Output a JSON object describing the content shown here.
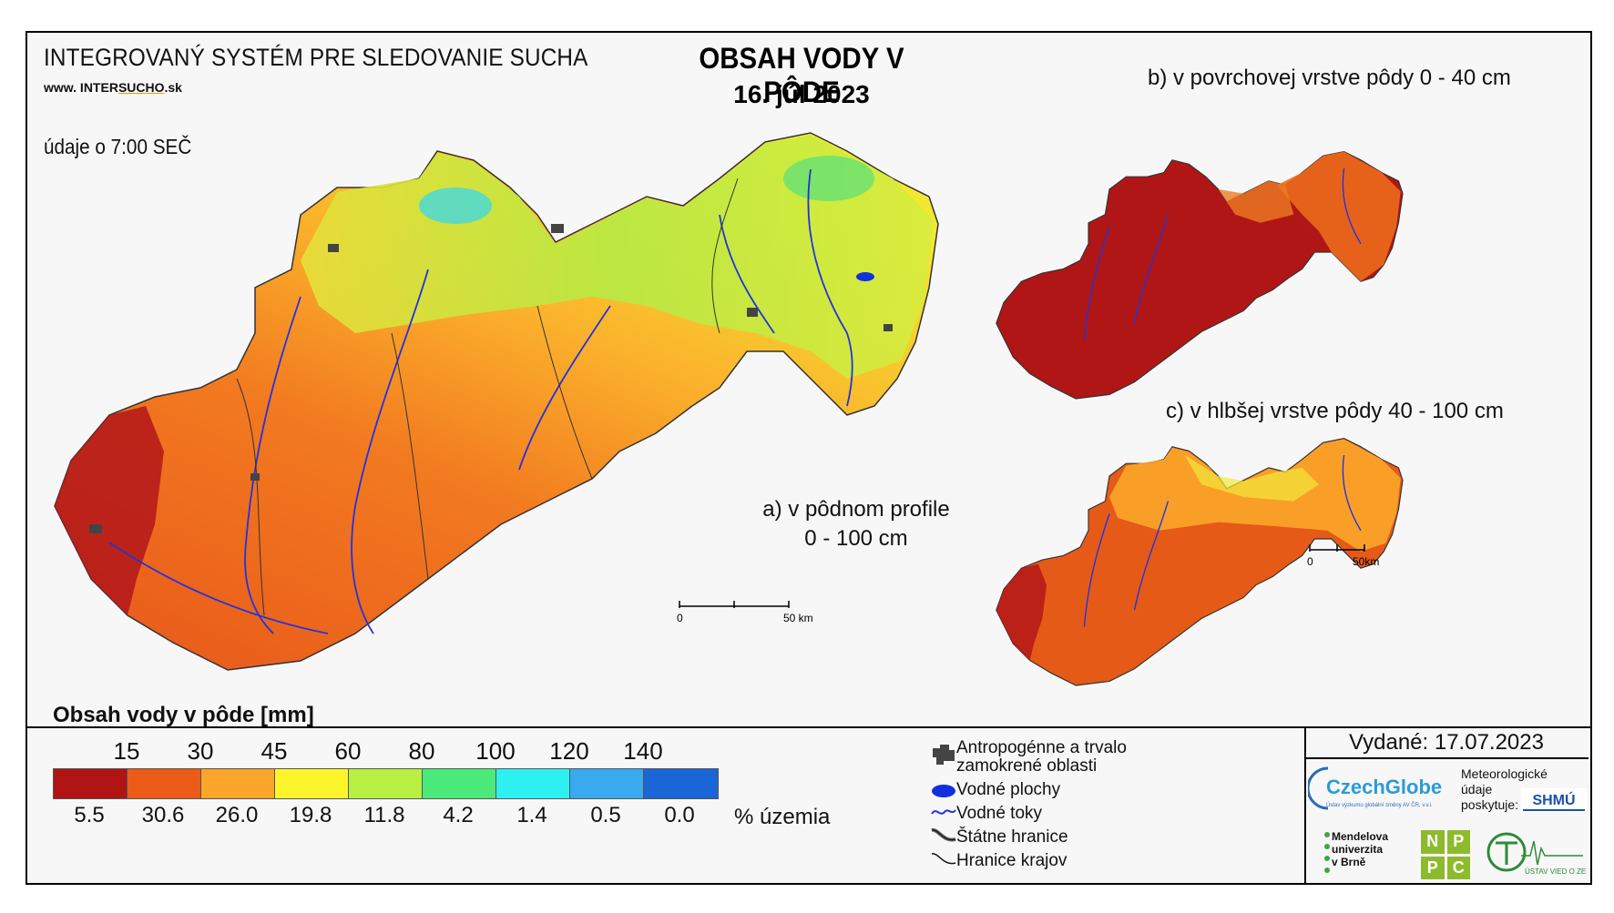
{
  "header": {
    "system_title": "INTEGROVANÝ SYSTÉM PRE SLEDOVANIE SUCHA",
    "website_prefix": "www. INTER",
    "website_highlight": "SUCHO",
    "website_suffix": ".sk",
    "time_note": "údaje o 7:00 SEČ",
    "main_title": "OBSAH VODY V PÔDE",
    "main_date": "16. júl 2023"
  },
  "maps": {
    "a_label_line1": "a) v pôdnom profile",
    "a_label_line2": "0 - 100 cm",
    "b_label": "b) v povrchovej vrstve pôdy 0 - 40 cm",
    "c_label": "c) v hlbšej vrstve pôdy 40 - 100 cm",
    "scale_main_zero": "0",
    "scale_main_end": "50 km",
    "scale_small_zero": "0",
    "scale_small_end": "50km"
  },
  "legend": {
    "title": "Obsah vody v pôde  [mm]",
    "thresholds": [
      "15",
      "30",
      "45",
      "60",
      "80",
      "100",
      "120",
      "140"
    ],
    "colors": [
      "#b01414",
      "#ec5b18",
      "#fba52a",
      "#fcf52c",
      "#b7f042",
      "#4cea7a",
      "#2ff0f0",
      "#38aaf0",
      "#1a66d6"
    ],
    "percentages": [
      "5.5",
      "30.6",
      "26.0",
      "19.8",
      "11.8",
      "4.2",
      "1.4",
      "0.5",
      "0.0"
    ],
    "percent_unit": "% územia"
  },
  "map_legend": {
    "anthropogenic_line1": "Antropogénne a trvalo",
    "anthropogenic_line2": "zamokrené oblasti",
    "water_bodies": "Vodné plochy",
    "water_streams": "Vodné toky",
    "state_borders": "Štátne hranice",
    "region_borders": "Hranice krajov",
    "icons": [
      "anthropogenic-area-icon",
      "water-body-icon",
      "water-stream-icon",
      "state-border-icon",
      "region-border-icon"
    ]
  },
  "footer": {
    "issued": "Vydané: 17.07.2023",
    "czechglobe": "CzechGlobe",
    "czechglobe_sub": "Ústav výzkumu globální změny AV ČR, v.v.i.",
    "meteo_line1": "Meteorologické",
    "meteo_line2": "údaje",
    "meteo_line3": "poskytuje:",
    "shmu": "SHMÚ",
    "mendel_line1": "Mendelova",
    "mendel_line2": "univerzita",
    "mendel_line3": "v Brně",
    "nppc": [
      "N",
      "P",
      "P",
      "C"
    ],
    "uvz": "ÚSTAV VIED O ZEMI"
  }
}
